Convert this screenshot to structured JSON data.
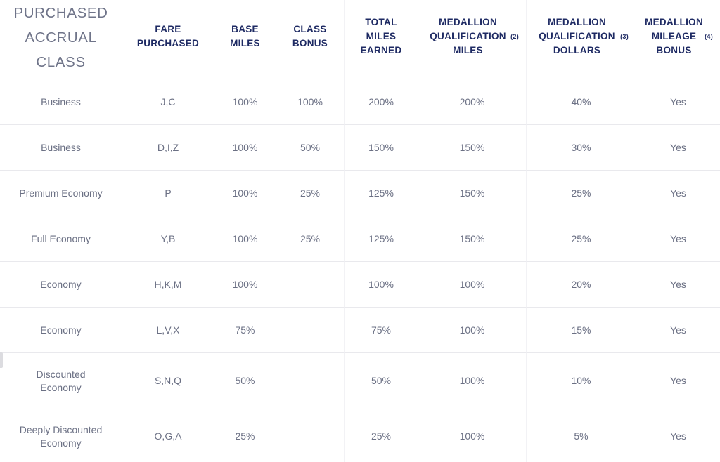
{
  "table": {
    "row_header_title": "PURCHASED ACCRUAL CLASS",
    "columns": [
      {
        "key": "fare-purchased",
        "label": "FARE PURCHASED",
        "sup": null
      },
      {
        "key": "base-miles",
        "label": "BASE MILES",
        "sup": null
      },
      {
        "key": "class-bonus",
        "label": "CLASS BONUS",
        "sup": null
      },
      {
        "key": "total-miles-earned",
        "label": "TOTAL MILES EARNED",
        "sup": null
      },
      {
        "key": "medallion-qualification-miles",
        "label": "MEDALLION QUALIFICATION MILES",
        "sup": "(2)"
      },
      {
        "key": "medallion-qualification-dollars",
        "label": "MEDALLION QUALIFICATION DOLLARS",
        "sup": "(3)"
      },
      {
        "key": "medallion-mileage-bonus",
        "label": "MEDALLION MILEAGE BONUS",
        "sup": "(4)"
      }
    ],
    "rows": [
      {
        "accrual_class": "Business",
        "cells": [
          "J,C",
          "100%",
          "100%",
          "200%",
          "200%",
          "40%",
          "Yes"
        ]
      },
      {
        "accrual_class": "Business",
        "cells": [
          "D,I,Z",
          "100%",
          "50%",
          "150%",
          "150%",
          "30%",
          "Yes"
        ]
      },
      {
        "accrual_class": "Premium Economy",
        "cells": [
          "P",
          "100%",
          "25%",
          "125%",
          "150%",
          "25%",
          "Yes"
        ]
      },
      {
        "accrual_class": "Full Economy",
        "cells": [
          "Y,B",
          "100%",
          "25%",
          "125%",
          "150%",
          "25%",
          "Yes"
        ]
      },
      {
        "accrual_class": "Economy",
        "cells": [
          "H,K,M",
          "100%",
          "",
          "100%",
          "100%",
          "20%",
          "Yes"
        ]
      },
      {
        "accrual_class": "Economy",
        "cells": [
          "L,V,X",
          "75%",
          "",
          "75%",
          "100%",
          "15%",
          "Yes"
        ]
      },
      {
        "accrual_class": "Discounted Economy",
        "cells": [
          "S,N,Q",
          "50%",
          "",
          "50%",
          "100%",
          "10%",
          "Yes"
        ]
      },
      {
        "accrual_class": "Deeply Discounted Economy",
        "cells": [
          "O,G,A",
          "25%",
          "",
          "25%",
          "100%",
          "5%",
          "Yes"
        ]
      }
    ]
  },
  "colors": {
    "header_navy": "#1e2a63",
    "row_title_gray": "#6f7489",
    "cell_text": "#6b7084",
    "border_vertical": "#f2f2f5",
    "border_horizontal": "#e9e9ed",
    "background": "#ffffff"
  }
}
